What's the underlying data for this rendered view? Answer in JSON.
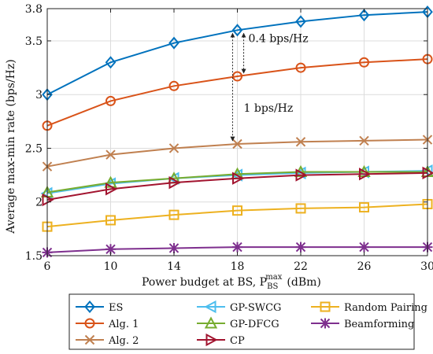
{
  "chart_data": {
    "type": "line",
    "title": "",
    "xlabel": "Power budget at BS, P",
    "xlabel_sub": "BS",
    "xlabel_sup": "max",
    "xlabel_unit": "(dBm)",
    "ylabel": "Average max-min rate (bps/Hz)",
    "x": [
      6,
      10,
      14,
      18,
      22,
      26,
      30
    ],
    "xlim": [
      6,
      30
    ],
    "ylim": [
      1.5,
      3.8
    ],
    "x_ticks": [
      "6",
      "10",
      "14",
      "18",
      "22",
      "26",
      "30"
    ],
    "y_ticks": [
      {
        "value": 1.5,
        "label": "1.5"
      },
      {
        "value": 2,
        "label": "2"
      },
      {
        "value": 2.5,
        "label": "2.5"
      },
      {
        "value": 3,
        "label": "3"
      },
      {
        "value": 3.5,
        "label": "3.5"
      },
      {
        "value": 3.8,
        "label": "3.8"
      }
    ],
    "grid": true,
    "legend_position": "bottom",
    "series": [
      {
        "name": "ES",
        "color": "#0072BD",
        "marker": "diamond",
        "values": [
          3.0,
          3.3,
          3.48,
          3.6,
          3.68,
          3.74,
          3.77
        ]
      },
      {
        "name": "Alg. 1",
        "color": "#D95319",
        "marker": "circle",
        "values": [
          2.71,
          2.94,
          3.08,
          3.17,
          3.25,
          3.3,
          3.33
        ]
      },
      {
        "name": "Alg. 2",
        "color": "#C08050",
        "marker": "x",
        "values": [
          2.33,
          2.44,
          2.5,
          2.54,
          2.56,
          2.57,
          2.58
        ]
      },
      {
        "name": "GP-SWCG",
        "color": "#4DBEEE",
        "marker": "triangle-left",
        "values": [
          2.08,
          2.17,
          2.22,
          2.25,
          2.27,
          2.28,
          2.29
        ]
      },
      {
        "name": "GP-DFCG",
        "color": "#77AC30",
        "marker": "triangle-up",
        "values": [
          2.09,
          2.18,
          2.22,
          2.26,
          2.28,
          2.28,
          2.28
        ]
      },
      {
        "name": "CP",
        "color": "#A2142F",
        "marker": "triangle-right",
        "values": [
          2.02,
          2.12,
          2.18,
          2.22,
          2.25,
          2.26,
          2.27
        ]
      },
      {
        "name": "Random Pairing",
        "color": "#EDB120",
        "marker": "square",
        "values": [
          1.77,
          1.83,
          1.88,
          1.92,
          1.94,
          1.95,
          1.98
        ]
      },
      {
        "name": "Beamforming",
        "color": "#7E2F8E",
        "marker": "asterisk",
        "values": [
          1.53,
          1.56,
          1.57,
          1.58,
          1.58,
          1.58,
          1.58
        ]
      }
    ],
    "annotations": [
      {
        "text": "0.4 bps/Hz",
        "x": 18,
        "y_from": 3.6,
        "y_to": 3.17,
        "arrow_x": 18.4
      },
      {
        "text": "1 bps/Hz",
        "x": 18,
        "y_from": 3.6,
        "y_to": 2.54,
        "arrow_x": 17.7
      }
    ]
  }
}
